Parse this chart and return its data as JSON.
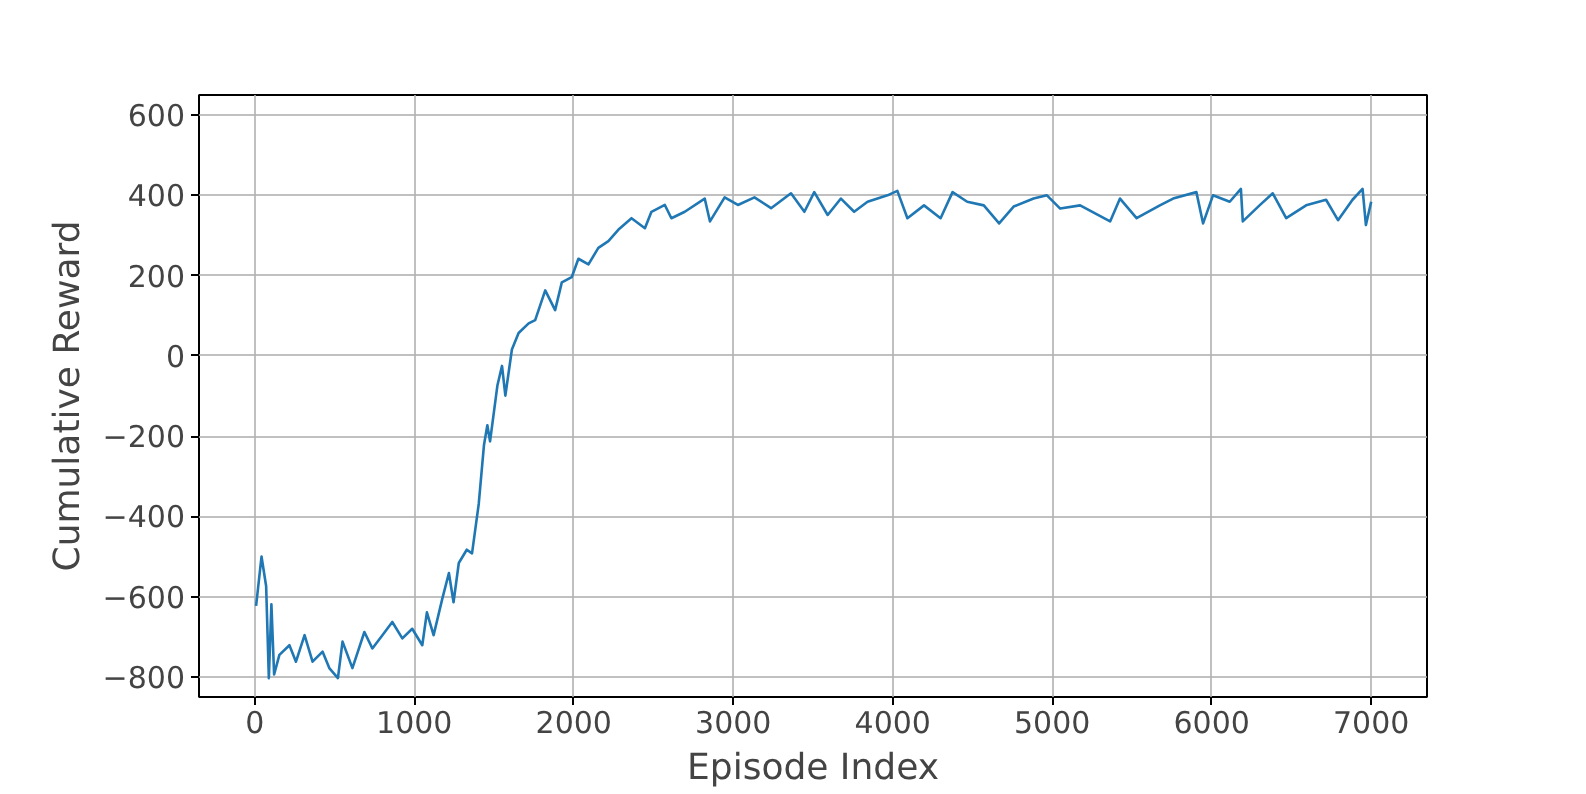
{
  "chart_data": {
    "type": "line",
    "xlabel": "Episode Index",
    "ylabel": "Cumulative Reward",
    "xlim": [
      -350,
      7350
    ],
    "ylim": [
      -850,
      650
    ],
    "xticks": [
      0,
      1000,
      2000,
      3000,
      4000,
      5000,
      6000,
      7000
    ],
    "yticks": [
      -800,
      -600,
      -400,
      -200,
      0,
      200,
      400,
      600
    ],
    "grid": true,
    "marker": "none",
    "line_style": "solid",
    "series": [
      {
        "color": "#1f77b4",
        "x": [
          8,
          42,
          71,
          88,
          104,
          121,
          154,
          217,
          258,
          312,
          362,
          425,
          467,
          521,
          550,
          612,
          687,
          737,
          800,
          862,
          925,
          987,
          1050,
          1079,
          1121,
          1175,
          1217,
          1246,
          1279,
          1329,
          1362,
          1404,
          1437,
          1458,
          1475,
          1521,
          1550,
          1571,
          1612,
          1654,
          1717,
          1758,
          1821,
          1883,
          1925,
          1987,
          2029,
          2092,
          2154,
          2217,
          2279,
          2362,
          2446,
          2487,
          2571,
          2612,
          2696,
          2821,
          2854,
          2946,
          3029,
          3133,
          3237,
          3362,
          3446,
          3508,
          3592,
          3675,
          3758,
          3842,
          3967,
          4029,
          4092,
          4196,
          4300,
          4375,
          4467,
          4571,
          4667,
          4758,
          4883,
          4967,
          5050,
          5175,
          5363,
          5425,
          5529,
          5675,
          5758,
          5904,
          5946,
          6008,
          6113,
          6183,
          6195,
          6300,
          6383,
          6467,
          6592,
          6717,
          6792,
          6883,
          6946,
          6967,
          7000
        ],
        "values": [
          -623,
          -500,
          -574,
          -803,
          -619,
          -794,
          -745,
          -721,
          -762,
          -696,
          -762,
          -737,
          -778,
          -803,
          -712,
          -778,
          -688,
          -729,
          -696,
          -663,
          -704,
          -680,
          -721,
          -639,
          -696,
          -606,
          -541,
          -614,
          -516,
          -483,
          -492,
          -369,
          -222,
          -173,
          -213,
          -74,
          -25,
          -99,
          16,
          57,
          81,
          89,
          163,
          114,
          183,
          196,
          242,
          228,
          269,
          286,
          314,
          343,
          318,
          359,
          376,
          343,
          359,
          392,
          335,
          395,
          376,
          395,
          368,
          405,
          359,
          408,
          351,
          392,
          359,
          384,
          400,
          411,
          343,
          375,
          343,
          408,
          384,
          375,
          330,
          372,
          392,
          400,
          367,
          375,
          335,
          392,
          343,
          375,
          392,
          408,
          330,
          400,
          384,
          416,
          335,
          375,
          405,
          343,
          375,
          389,
          338,
          389,
          416,
          326,
          384
        ]
      }
    ]
  }
}
